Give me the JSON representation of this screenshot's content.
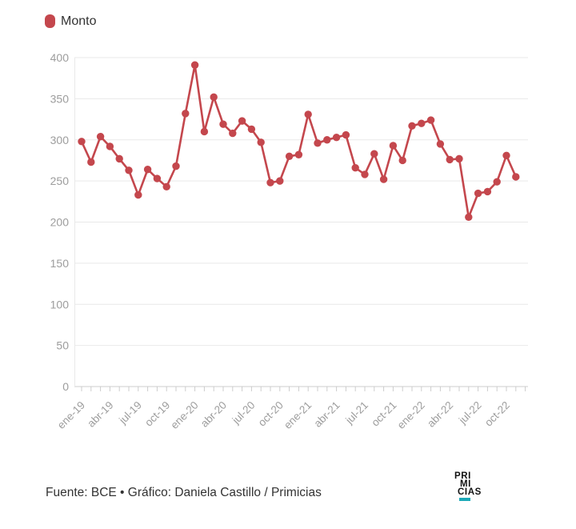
{
  "legend": {
    "label": "Monto",
    "color": "#c4474d"
  },
  "chart_data": {
    "type": "line",
    "title": "",
    "xlabel": "",
    "ylabel": "",
    "grid": true,
    "legend_position": "top-left",
    "ylim": [
      0,
      400
    ],
    "y_ticks": [
      0,
      50,
      100,
      150,
      200,
      250,
      300,
      350,
      400
    ],
    "x_tick_labels": [
      "ene-19",
      "abr-19",
      "jul-19",
      "oct-19",
      "ene-20",
      "abr-20",
      "jul-20",
      "oct-20",
      "ene-21",
      "abr-21",
      "jul-21",
      "oct-21",
      "ene-22",
      "abr-22",
      "jul-22",
      "oct-22"
    ],
    "x": [
      "ene-19",
      "feb-19",
      "mar-19",
      "abr-19",
      "may-19",
      "jun-19",
      "jul-19",
      "ago-19",
      "sep-19",
      "oct-19",
      "nov-19",
      "dic-19",
      "ene-20",
      "feb-20",
      "mar-20",
      "abr-20",
      "may-20",
      "jun-20",
      "jul-20",
      "ago-20",
      "sep-20",
      "oct-20",
      "nov-20",
      "dic-20",
      "ene-21",
      "feb-21",
      "mar-21",
      "abr-21",
      "may-21",
      "jun-21",
      "jul-21",
      "ago-21",
      "sep-21",
      "oct-21",
      "nov-21",
      "dic-21",
      "ene-22",
      "feb-22",
      "mar-22",
      "abr-22",
      "may-22",
      "jun-22",
      "jul-22",
      "ago-22",
      "sep-22",
      "oct-22",
      "nov-22"
    ],
    "series": [
      {
        "name": "Monto",
        "color": "#c4474d",
        "values": [
          298,
          273,
          304,
          292,
          277,
          263,
          233,
          264,
          253,
          243,
          268,
          332,
          391,
          310,
          352,
          319,
          308,
          323,
          313,
          297,
          248,
          250,
          280,
          282,
          331,
          296,
          300,
          303,
          306,
          266,
          258,
          283,
          252,
          293,
          275,
          317,
          320,
          324,
          295,
          276,
          277,
          206,
          235,
          237,
          249,
          281,
          255
        ]
      }
    ],
    "colors": {
      "gridline": "#e9e9e9",
      "axis_line": "#cccccc",
      "tick": "#cccccc",
      "tick_label": "#9d9d9d"
    }
  },
  "footer": {
    "credit": "Fuente: BCE • Gráfico: Daniela Castillo / Primicias"
  },
  "logo": {
    "lines": [
      "PRI",
      "MI",
      "CIAS"
    ],
    "accent_color": "#1ca9b8"
  }
}
